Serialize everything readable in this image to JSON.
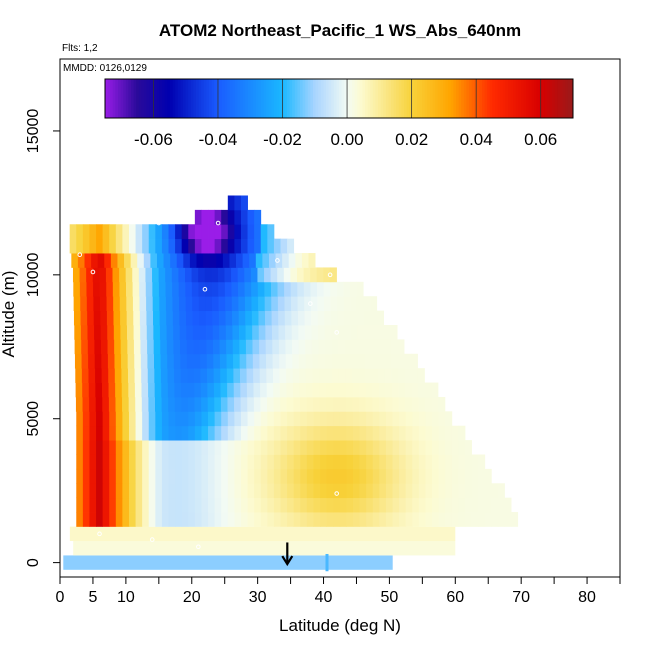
{
  "chart_data": {
    "type": "heatmap",
    "title": "ATOM2 Northeast_Pacific_1 WS_Abs_640nm",
    "flights_note": "Flts: 1,2",
    "dates_note": "MMDD: 0126,0129",
    "xlabel": "Latitude (deg N)",
    "ylabel": "Altitude (m)",
    "xlim": [
      0,
      85
    ],
    "ylim": [
      -500,
      17500
    ],
    "x_ticks": [
      {
        "value": 0,
        "label": "0"
      },
      {
        "value": 5,
        "label": "5"
      },
      {
        "value": 10,
        "label": "10"
      },
      {
        "value": 20,
        "label": "20"
      },
      {
        "value": 30,
        "label": "30"
      },
      {
        "value": 40,
        "label": "40"
      },
      {
        "value": 50,
        "label": "50"
      },
      {
        "value": 60,
        "label": "60"
      },
      {
        "value": 70,
        "label": "70"
      },
      {
        "value": 80,
        "label": "80"
      }
    ],
    "x_minor_ticks": [
      15,
      25,
      35,
      45,
      55,
      65,
      75,
      85
    ],
    "y_ticks": [
      {
        "value": 0,
        "label": "0"
      },
      {
        "value": 5000,
        "label": "5000"
      },
      {
        "value": 10000,
        "label": "10000"
      },
      {
        "value": 15000,
        "label": "15000"
      }
    ],
    "colorbar": {
      "range": [
        -0.075,
        0.07
      ],
      "ticks": [
        {
          "value": -0.06,
          "label": "-0.06"
        },
        {
          "value": -0.04,
          "label": "-0.04"
        },
        {
          "value": -0.02,
          "label": "-0.02"
        },
        {
          "value": 0.0,
          "label": "0.00"
        },
        {
          "value": 0.02,
          "label": "0.02"
        },
        {
          "value": 0.04,
          "label": "0.04"
        },
        {
          "value": 0.06,
          "label": "0.06"
        }
      ],
      "separators": [
        -0.06,
        -0.04,
        -0.02,
        0.0,
        0.02,
        0.04,
        0.06
      ]
    },
    "cell_size": {
      "dlat": 1,
      "dalt": 500
    },
    "bottom_bands": [
      {
        "alt": 500,
        "lat_range": [
          2,
          60
        ],
        "value": 0.003
      },
      {
        "alt": 1000,
        "lat_range": [
          1.5,
          60
        ],
        "value": 0.005
      }
    ],
    "lowest_band": {
      "alt": 0,
      "lat_range": [
        0.5,
        50.5
      ],
      "value": -0.012
    },
    "field": {
      "left_edge_by_alt": [
        [
          1500,
          2.5
        ],
        [
          5000,
          2.5
        ],
        [
          10000,
          2
        ],
        [
          11000,
          1.5
        ]
      ],
      "right_edge_by_alt": [
        [
          1500,
          69.5
        ],
        [
          2000,
          68.5
        ],
        [
          4500,
          61
        ],
        [
          7500,
          52
        ],
        [
          9500,
          46
        ],
        [
          10500,
          38
        ],
        [
          11500,
          32
        ],
        [
          12500,
          28
        ],
        [
          13000,
          27
        ]
      ],
      "top_by_lat": [
        [
          1.5,
          11500
        ],
        [
          20,
          11900
        ],
        [
          24,
          12300
        ],
        [
          28,
          12900
        ],
        [
          30,
          12000
        ],
        [
          35,
          11000
        ],
        [
          40,
          10500
        ],
        [
          45,
          10000
        ],
        [
          50,
          9500
        ],
        [
          60,
          6500
        ],
        [
          70,
          1500
        ]
      ],
      "positive_core": {
        "lat": 6,
        "alt_range": [
          1000,
          11000
        ],
        "peak_value": 0.06
      },
      "negative_core": {
        "lat": 22,
        "alt": 11500,
        "peak_value": -0.07
      },
      "negative_plume_top": {
        "lat": 24,
        "alt": 11000,
        "value": -0.05
      },
      "negative_plume_bottom": {
        "lat": 18,
        "alt": 4500,
        "value": -0.03
      },
      "mid_positive": {
        "lat": 42,
        "alt": 3000,
        "value": 0.02
      }
    },
    "markers": [
      {
        "lat": 3,
        "alt": 10700
      },
      {
        "lat": 5,
        "alt": 10100
      },
      {
        "lat": 24,
        "alt": 11800
      },
      {
        "lat": 15,
        "alt": 11800
      },
      {
        "lat": 22,
        "alt": 9500
      },
      {
        "lat": 38,
        "alt": 9000
      },
      {
        "lat": 41,
        "alt": 10000
      },
      {
        "lat": 33,
        "alt": 10500
      },
      {
        "lat": 42,
        "alt": 8000
      },
      {
        "lat": 14,
        "alt": 800
      },
      {
        "lat": 21,
        "alt": 550
      },
      {
        "lat": 6,
        "alt": 1000
      },
      {
        "lat": 42,
        "alt": 2400
      }
    ],
    "arrow": {
      "lat": 34.5,
      "alt_from": 700,
      "alt_to": -50
    }
  }
}
